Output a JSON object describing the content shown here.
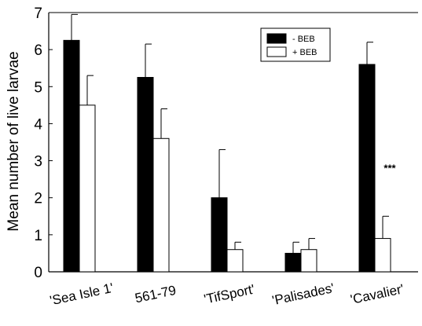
{
  "chart_data": {
    "type": "bar",
    "ylabel": "Mean number of live larvae",
    "xlabel": "",
    "ylim": [
      0,
      7
    ],
    "yticks": [
      0,
      1,
      2,
      3,
      4,
      5,
      6,
      7
    ],
    "categories": [
      "'Sea Isle 1'",
      "561-79",
      "'TifSport'",
      "'Palisades'",
      "'Cavalier'"
    ],
    "series": [
      {
        "name": "- BEB",
        "color": "#000000",
        "values": [
          6.25,
          5.25,
          2.0,
          0.5,
          5.6
        ],
        "errors": [
          0.7,
          0.9,
          1.3,
          0.3,
          0.6
        ]
      },
      {
        "name": "+ BEB",
        "color": "#ffffff",
        "values": [
          4.5,
          3.6,
          0.6,
          0.6,
          0.9
        ],
        "errors": [
          0.8,
          0.8,
          0.2,
          0.3,
          0.6
        ]
      }
    ],
    "legend_position": "top-right",
    "annotations": [
      {
        "category_index": 4,
        "text": "***"
      }
    ],
    "grid": false
  }
}
